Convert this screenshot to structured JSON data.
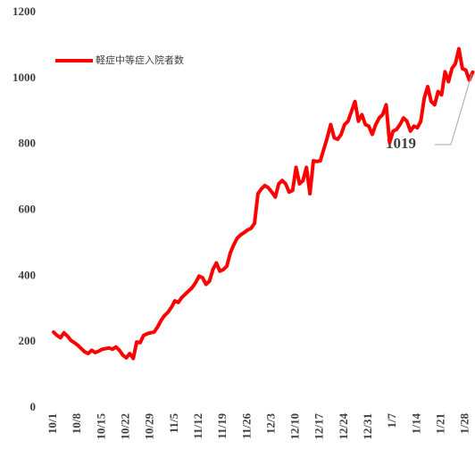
{
  "chart_data": {
    "type": "line",
    "categories": [
      "10/1",
      null,
      null,
      null,
      null,
      null,
      null,
      "10/8",
      null,
      null,
      null,
      null,
      null,
      null,
      "10/15",
      null,
      null,
      null,
      null,
      null,
      null,
      "10/22",
      null,
      null,
      null,
      null,
      null,
      null,
      "10/29",
      null,
      null,
      null,
      null,
      null,
      null,
      "11/5",
      null,
      null,
      null,
      null,
      null,
      null,
      "11/12",
      null,
      null,
      null,
      null,
      null,
      null,
      "11/19",
      null,
      null,
      null,
      null,
      null,
      null,
      "11/26",
      null,
      null,
      null,
      null,
      null,
      null,
      "12/3",
      null,
      null,
      null,
      null,
      null,
      null,
      "12/10",
      null,
      null,
      null,
      null,
      null,
      null,
      "12/17",
      null,
      null,
      null,
      null,
      null,
      null,
      "12/24",
      null,
      null,
      null,
      null,
      null,
      null,
      "12/31",
      null,
      null,
      null,
      null,
      null,
      null,
      "1/7",
      null,
      null,
      null,
      null,
      null,
      null,
      "1/14",
      null,
      null,
      null,
      null,
      null,
      null,
      "1/21",
      null,
      null,
      null,
      null,
      null,
      null,
      "1/28",
      null,
      null
    ],
    "series": [
      {
        "name": "軽症中等症入院者数",
        "color": "#ff0000",
        "values": [
          230,
          220,
          213,
          228,
          218,
          205,
          198,
          190,
          180,
          170,
          165,
          175,
          168,
          172,
          178,
          180,
          182,
          178,
          185,
          175,
          160,
          152,
          165,
          150,
          200,
          198,
          220,
          225,
          228,
          230,
          245,
          265,
          280,
          290,
          305,
          325,
          320,
          335,
          345,
          355,
          365,
          380,
          400,
          395,
          375,
          385,
          420,
          440,
          415,
          420,
          430,
          470,
          495,
          515,
          525,
          532,
          540,
          545,
          560,
          650,
          665,
          675,
          668,
          655,
          640,
          680,
          690,
          680,
          655,
          660,
          730,
          680,
          690,
          730,
          650,
          750,
          748,
          750,
          785,
          820,
          860,
          820,
          815,
          830,
          860,
          870,
          900,
          930,
          870,
          890,
          860,
          855,
          830,
          860,
          880,
          890,
          920,
          805,
          840,
          845,
          860,
          880,
          870,
          840,
          855,
          850,
          870,
          940,
          975,
          930,
          920,
          960,
          950,
          1020,
          990,
          1030,
          1045,
          1090,
          1030,
          1025,
          995,
          1019
        ]
      }
    ],
    "ylim": [
      0,
      1200
    ],
    "yticks": [
      0,
      200,
      400,
      600,
      800,
      1000,
      1200
    ],
    "grid": false,
    "legend": "top-left",
    "annotation": "1019"
  }
}
